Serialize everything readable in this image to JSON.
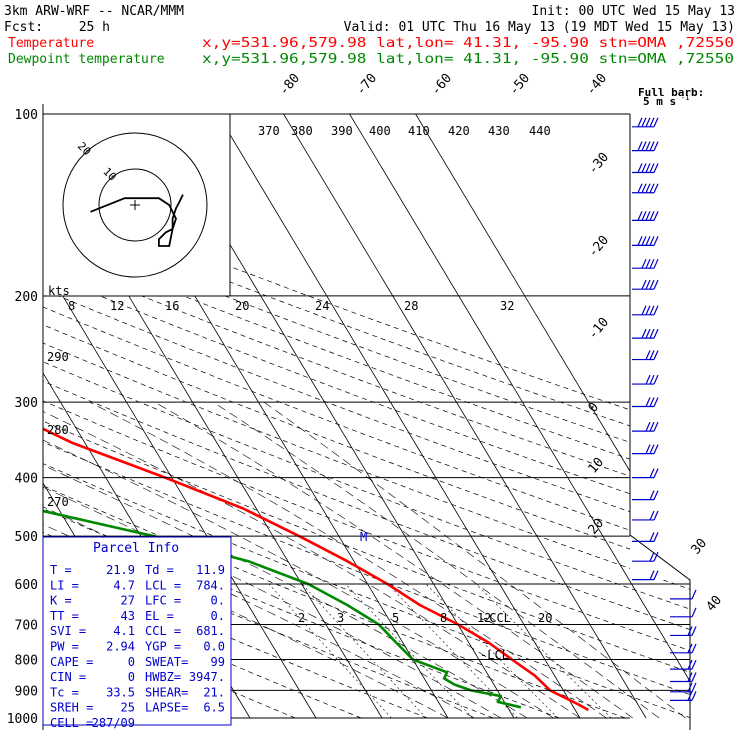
{
  "header": {
    "model": "3km ARW-WRF -- NCAR/MMM",
    "init": "Init: 00 UTC Wed 15 May 13",
    "fcst_label": "Fcst:",
    "fcst_value": "25 h",
    "valid": "Valid: 01 UTC Thu 16 May 13 (19 MDT Wed 15 May 13)",
    "temp_label": "Temperature",
    "temp_info": "x,y=531.96,579.98   lat,lon= 41.31, -95.90  stn=OMA ,72550",
    "dew_label": "Dewpoint temperature",
    "dew_info": "x,y=531.96,579.98   lat,lon= 41.31, -95.90  stn=OMA ,72550",
    "colors": {
      "temperature": "#ff0000",
      "dewpoint": "#008800",
      "parcel_box": "#0000cc",
      "barbs": "#0000cc"
    }
  },
  "barb_legend": {
    "line1": "Full barb:",
    "line2": "5 m s",
    "exp": "-1"
  },
  "hodograph": {
    "kts_label": "kts",
    "rings": [
      {
        "label": "10",
        "r": 10
      },
      {
        "label": "20",
        "r": 20
      }
    ],
    "points": [
      [
        -13,
        -2
      ],
      [
        -3,
        2
      ],
      [
        3,
        2
      ],
      [
        7,
        2
      ],
      [
        10,
        0
      ],
      [
        12,
        -4
      ],
      [
        11,
        -7
      ],
      [
        9,
        -8
      ],
      [
        8,
        -9
      ],
      [
        7,
        -10
      ],
      [
        7,
        -12
      ],
      [
        10,
        -12
      ],
      [
        11,
        -7
      ],
      [
        11,
        -4
      ],
      [
        12,
        -1
      ],
      [
        13,
        1
      ],
      [
        14,
        3
      ]
    ]
  },
  "parcel": {
    "title": "Parcel Info",
    "rows": [
      [
        "T  =",
        "21.9",
        "Td =",
        "11.9"
      ],
      [
        "LI =",
        "4.7",
        "LCL =",
        "784."
      ],
      [
        "K  =",
        "27",
        "LFC =",
        "0."
      ],
      [
        "TT =",
        "43",
        "EL  =",
        "0."
      ],
      [
        "SVI =",
        "4.1",
        "CCL =",
        "681."
      ],
      [
        "PW =",
        "2.94",
        "YGP =",
        "0.0"
      ],
      [
        "CAPE =",
        "0",
        "SWEAT=",
        "99"
      ],
      [
        "CIN =",
        "0",
        "HWBZ=",
        "3947."
      ],
      [
        "Tc =",
        "33.5",
        "SHEAR=",
        "21."
      ],
      [
        "SREH =",
        "25",
        "LAPSE=",
        "6.5"
      ],
      [
        "CELL =",
        "287/09",
        "",
        ""
      ]
    ]
  },
  "markers": {
    "lcl": "LCL",
    "ccl": "CCL",
    "m": "M"
  },
  "chart_data": {
    "type": "line",
    "diagram": "skew-T log-p",
    "pressure_ticks": [
      "100",
      "200",
      "300",
      "400",
      "500",
      "600",
      "700",
      "800",
      "900",
      "1000"
    ],
    "pressure_values": [
      100,
      200,
      300,
      400,
      500,
      600,
      700,
      800,
      900,
      1000
    ],
    "isotherm_labels": [
      "-80",
      "-70",
      "-60",
      "-50",
      "-40",
      "-30",
      "-20",
      "-10",
      "0",
      "10",
      "20",
      "30",
      "40"
    ],
    "isotherm_values": [
      -80,
      -70,
      -60,
      -50,
      -40,
      -30,
      -20,
      -10,
      0,
      10,
      20,
      30,
      40
    ],
    "theta_labels": [
      "370",
      "380",
      "390",
      "400",
      "410",
      "420",
      "430",
      "440"
    ],
    "dry_adiabat_side_labels": [
      "290",
      "280",
      "270"
    ],
    "mixing_ratio_labels": [
      "2",
      "3",
      "5",
      "8",
      "12",
      "20"
    ],
    "hodo_speed_labels": [
      "8",
      "12",
      "16",
      "20",
      "24",
      "28",
      "32"
    ],
    "series": [
      {
        "name": "Temperature",
        "color": "#ff0000",
        "points": [
          [
            100,
            -52
          ],
          [
            120,
            -54
          ],
          [
            150,
            -59
          ],
          [
            180,
            -63
          ],
          [
            200,
            -63
          ],
          [
            250,
            -52
          ],
          [
            300,
            -41
          ],
          [
            350,
            -32
          ],
          [
            400,
            -21
          ],
          [
            450,
            -12
          ],
          [
            500,
            -6
          ],
          [
            550,
            -1
          ],
          [
            600,
            3
          ],
          [
            650,
            6
          ],
          [
            700,
            10
          ],
          [
            750,
            13
          ],
          [
            800,
            15
          ],
          [
            850,
            17
          ],
          [
            900,
            18
          ],
          [
            950,
            21
          ],
          [
            970,
            22
          ]
        ]
      },
      {
        "name": "Dewpoint temperature",
        "color": "#008800",
        "points": [
          [
            100,
            -66
          ],
          [
            130,
            -71
          ],
          [
            150,
            -73
          ],
          [
            180,
            -75
          ],
          [
            200,
            -78
          ],
          [
            250,
            -82
          ],
          [
            270,
            -84
          ],
          [
            300,
            -80
          ],
          [
            330,
            -74
          ],
          [
            350,
            -61
          ],
          [
            400,
            -49
          ],
          [
            420,
            -46
          ],
          [
            450,
            -44
          ],
          [
            500,
            -28
          ],
          [
            550,
            -16
          ],
          [
            600,
            -9
          ],
          [
            650,
            -5
          ],
          [
            700,
            -2
          ],
          [
            750,
            -1
          ],
          [
            800,
            0
          ],
          [
            840,
            4
          ],
          [
            860,
            3
          ],
          [
            880,
            4
          ],
          [
            900,
            6
          ],
          [
            920,
            10
          ],
          [
            940,
            9
          ],
          [
            960,
            12
          ]
        ]
      }
    ],
    "wind_barbs": [
      {
        "p": 105,
        "spd": 25
      },
      {
        "p": 115,
        "spd": 25
      },
      {
        "p": 125,
        "spd": 25
      },
      {
        "p": 135,
        "spd": 25
      },
      {
        "p": 150,
        "spd": 25
      },
      {
        "p": 165,
        "spd": 25
      },
      {
        "p": 180,
        "spd": 20
      },
      {
        "p": 195,
        "spd": 20
      },
      {
        "p": 215,
        "spd": 20
      },
      {
        "p": 235,
        "spd": 20
      },
      {
        "p": 255,
        "spd": 15
      },
      {
        "p": 280,
        "spd": 15
      },
      {
        "p": 305,
        "spd": 15
      },
      {
        "p": 335,
        "spd": 15
      },
      {
        "p": 365,
        "spd": 15
      },
      {
        "p": 400,
        "spd": 10
      },
      {
        "p": 435,
        "spd": 10
      },
      {
        "p": 470,
        "spd": 10
      },
      {
        "p": 510,
        "spd": 10
      },
      {
        "p": 550,
        "spd": 10
      },
      {
        "p": 590,
        "spd": 10
      },
      {
        "p": 635,
        "spd": 5
      },
      {
        "p": 680,
        "spd": 5
      },
      {
        "p": 730,
        "spd": 10
      },
      {
        "p": 780,
        "spd": 10
      },
      {
        "p": 830,
        "spd": 10
      },
      {
        "p": 870,
        "spd": 10
      },
      {
        "p": 905,
        "spd": 10
      },
      {
        "p": 935,
        "spd": 10
      }
    ],
    "ylim": [
      100,
      1000
    ],
    "xlim": [
      -40,
      40
    ]
  }
}
